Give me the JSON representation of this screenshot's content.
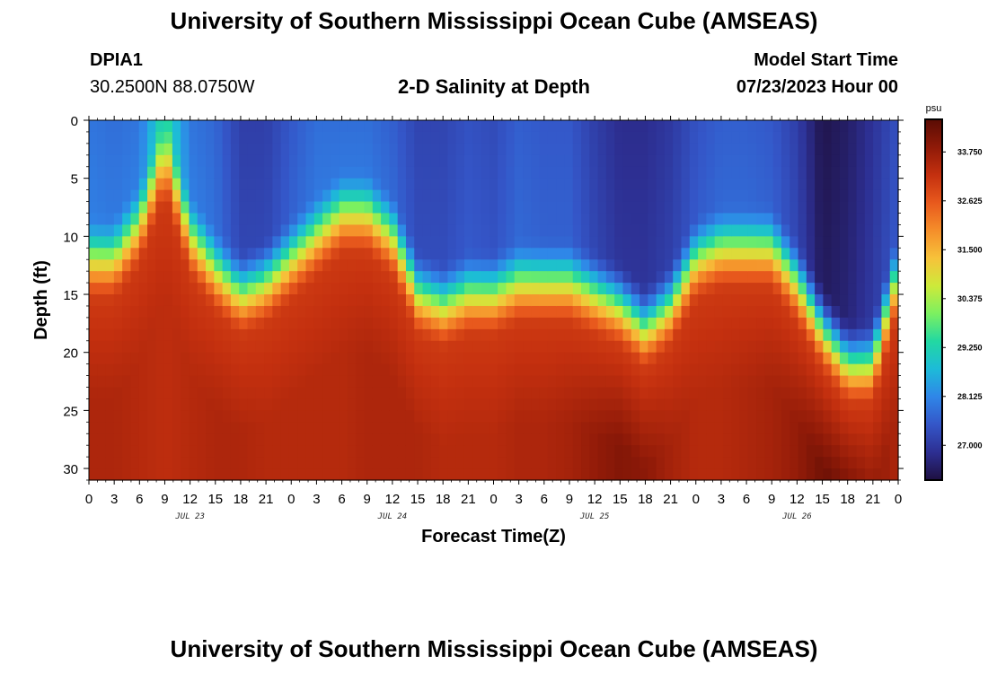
{
  "header": {
    "title": "University of Southern Mississippi Ocean Cube (AMSEAS)",
    "station_id": "DPIA1",
    "coordinates": "30.2500N  88.0750W",
    "subtitle": "2-D Salinity at Depth",
    "model_start_label": "Model Start Time",
    "model_start_value": "07/23/2023 Hour 00"
  },
  "footer": {
    "title": "University of Southern Mississippi Ocean Cube (AMSEAS)"
  },
  "chart_data": {
    "type": "heatmap",
    "title": "2-D Salinity at Depth",
    "xlabel": "Forecast Time(Z)",
    "ylabel": "Depth (ft)",
    "x_tick_labels": [
      "0",
      "3",
      "6",
      "9",
      "12",
      "15",
      "18",
      "21",
      "0",
      "3",
      "6",
      "9",
      "12",
      "15",
      "18",
      "21",
      "0",
      "3",
      "6",
      "9",
      "12",
      "15",
      "18",
      "21",
      "0",
      "3",
      "6",
      "9",
      "12",
      "15",
      "18",
      "21",
      "0"
    ],
    "x_range_hours": [
      0,
      96
    ],
    "day_labels": [
      "JUL 23",
      "JUL 24",
      "JUL 25",
      "JUL 26"
    ],
    "y_tick_labels": [
      "0",
      "5",
      "10",
      "15",
      "20",
      "25",
      "30"
    ],
    "y_range_ft": [
      0,
      31
    ],
    "colorbar": {
      "unit": "psu",
      "tick_labels": [
        "33.750",
        "32.625",
        "31.500",
        "30.375",
        "29.250",
        "28.125",
        "27.000"
      ],
      "range": [
        26.2,
        34.5
      ],
      "colors": [
        "#1e1040",
        "#2d2f92",
        "#3456c8",
        "#2f86e8",
        "#1dbbd8",
        "#22d8a2",
        "#7cf060",
        "#cdea3a",
        "#f7c23a",
        "#f58e2a",
        "#e8591d",
        "#c4300f",
        "#8f1a08",
        "#5a0c04"
      ]
    },
    "series": [
      {
        "name": "surface_salinity_psu",
        "unit": "psu",
        "hours": [
          0,
          3,
          6,
          9,
          12,
          15,
          18,
          21,
          24,
          27,
          30,
          33,
          36,
          39,
          42,
          45,
          48,
          51,
          54,
          57,
          60,
          63,
          66,
          69,
          72,
          75,
          78,
          81,
          84,
          87,
          90,
          93,
          96
        ],
        "values": [
          27.9,
          27.8,
          27.9,
          29.4,
          27.9,
          27.7,
          27.1,
          27.1,
          27.5,
          27.8,
          27.8,
          27.8,
          27.6,
          27.2,
          27.2,
          27.4,
          27.3,
          27.6,
          27.5,
          27.5,
          27.1,
          26.8,
          26.8,
          27.0,
          27.4,
          27.6,
          27.6,
          27.5,
          27.1,
          26.3,
          26.5,
          26.9,
          27.4
        ]
      },
      {
        "name": "halocline_depth_ft",
        "unit": "ft",
        "hours": [
          0,
          3,
          6,
          9,
          12,
          15,
          18,
          21,
          24,
          27,
          30,
          33,
          36,
          39,
          42,
          45,
          48,
          51,
          54,
          57,
          60,
          63,
          66,
          69,
          72,
          75,
          78,
          81,
          84,
          87,
          90,
          93,
          96
        ],
        "values": [
          13,
          13,
          10,
          4,
          11,
          14,
          16,
          15,
          13,
          11,
          9,
          9,
          11,
          16,
          17,
          16,
          16,
          15,
          15,
          15,
          16,
          17,
          19,
          17,
          13,
          12,
          12,
          12,
          15,
          19,
          22,
          22,
          14
        ]
      },
      {
        "name": "bottom_salinity_psu",
        "unit": "psu",
        "hours": [
          0,
          3,
          6,
          9,
          12,
          15,
          18,
          21,
          24,
          27,
          30,
          33,
          36,
          39,
          42,
          45,
          48,
          51,
          54,
          57,
          60,
          63,
          66,
          69,
          72,
          75,
          78,
          81,
          84,
          87,
          90,
          93,
          96
        ],
        "values": [
          33.5,
          33.5,
          33.4,
          33.3,
          33.4,
          33.5,
          33.5,
          33.4,
          33.4,
          33.4,
          33.4,
          33.5,
          33.5,
          33.5,
          33.4,
          33.4,
          33.4,
          33.5,
          33.5,
          33.6,
          33.8,
          34.0,
          33.9,
          33.6,
          33.4,
          33.4,
          33.5,
          33.6,
          33.8,
          34.2,
          34.3,
          33.9,
          33.5
        ]
      }
    ]
  }
}
